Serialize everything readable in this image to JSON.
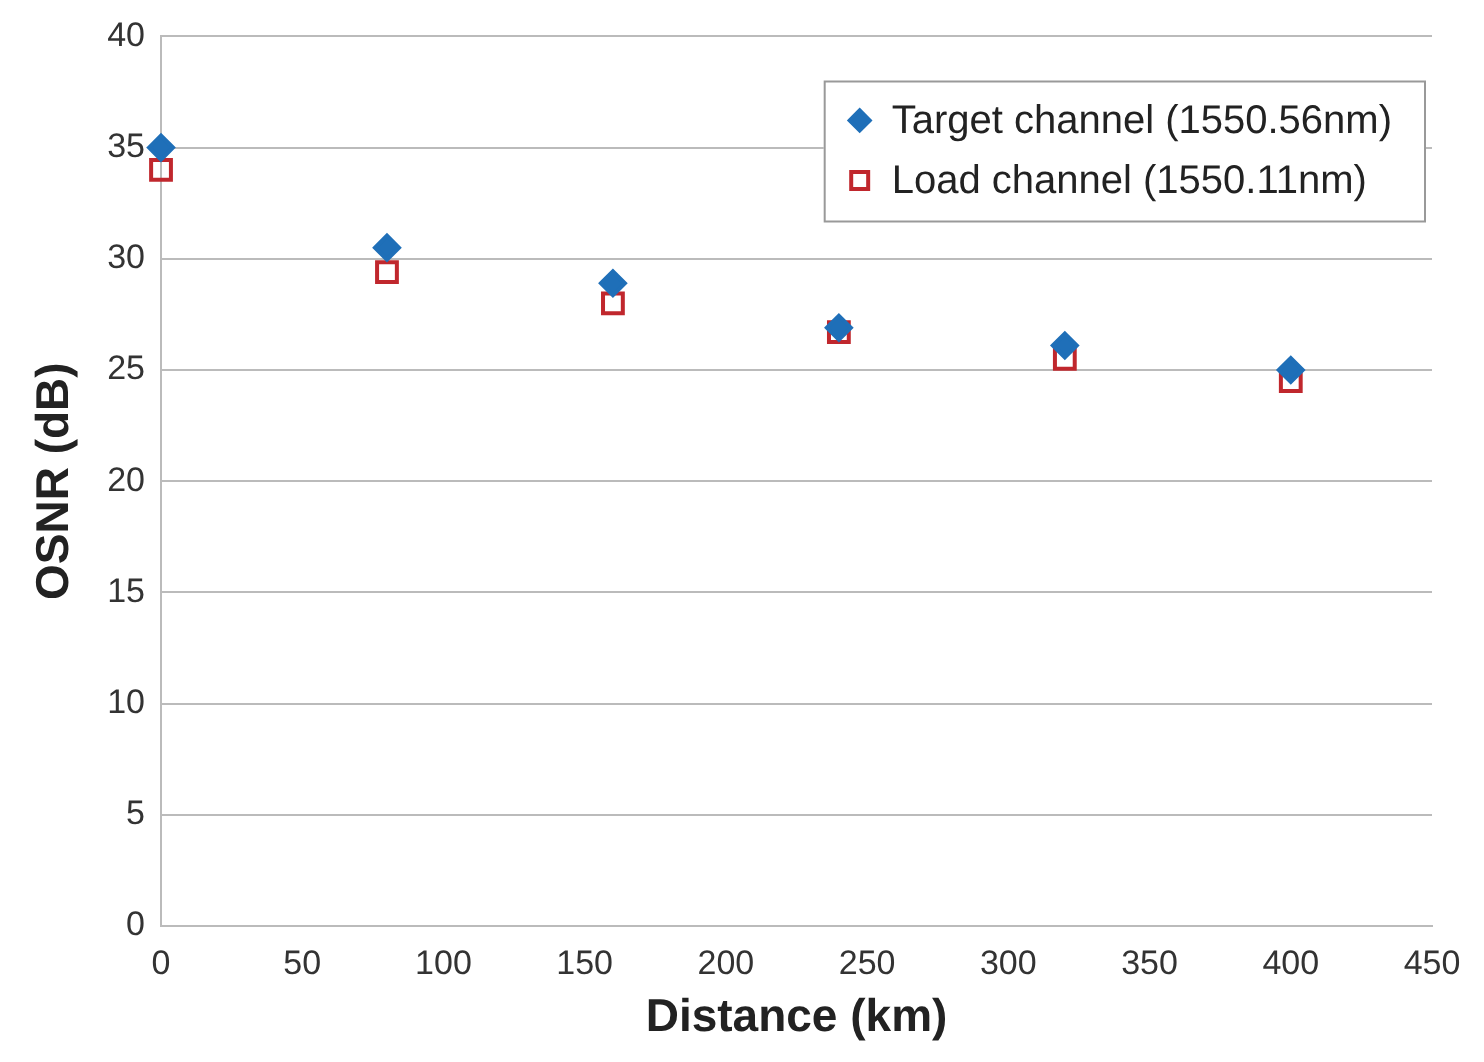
{
  "chart_data": {
    "type": "scatter",
    "xlabel": "Distance (km)",
    "ylabel": "OSNR (dB)",
    "x": [
      0,
      80,
      160,
      240,
      320,
      400
    ],
    "series": [
      {
        "name": "Target channel (1550.56nm)",
        "color": "#1f6fb8",
        "marker": "diamond",
        "values": [
          35,
          30.5,
          28.9,
          26.9,
          26.1,
          25
        ]
      },
      {
        "name": "Load channel (1550.11nm)",
        "color": "#c0272d",
        "marker": "square",
        "values": [
          34,
          29.4,
          28,
          26.7,
          25.5,
          24.5
        ]
      }
    ],
    "xlim": [
      0,
      450
    ],
    "xticks": [
      0,
      50,
      100,
      150,
      200,
      250,
      300,
      350,
      400,
      450
    ],
    "ylim": [
      0,
      40
    ],
    "yticks": [
      0,
      5,
      10,
      15,
      20,
      25,
      30,
      35,
      40
    ],
    "grid": "y",
    "legend": "top right"
  }
}
